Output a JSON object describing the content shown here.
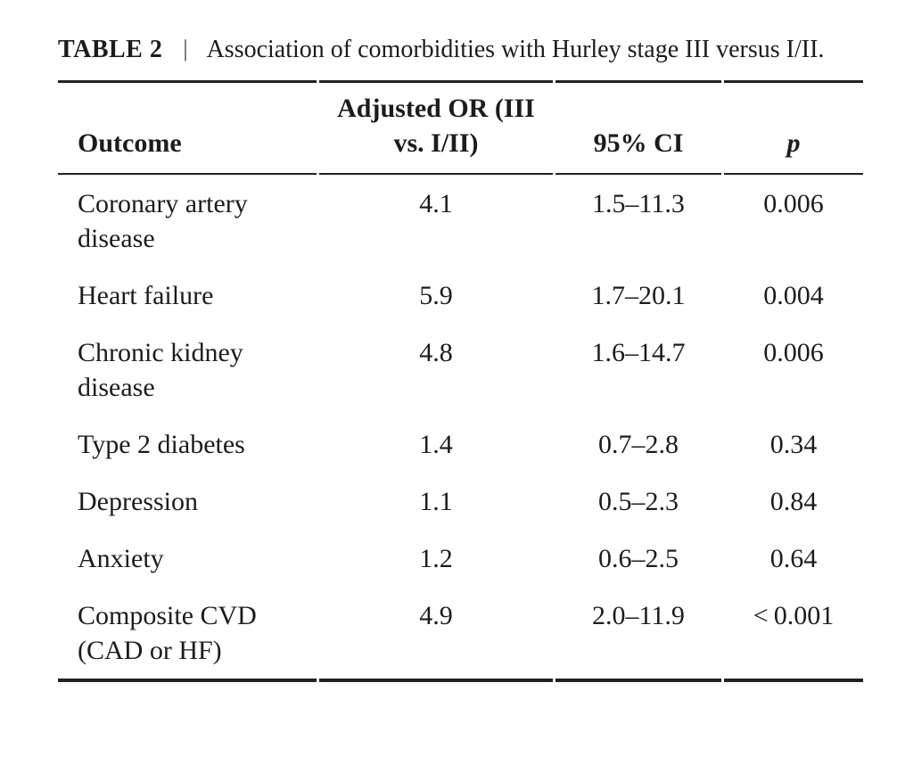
{
  "table": {
    "label": "TABLE 2",
    "separator": "|",
    "caption": "Association of comorbidities with Hurley stage III versus I/II.",
    "columns": [
      {
        "label": "Outcome"
      },
      {
        "label": "Adjusted OR (III vs. I/II)"
      },
      {
        "label": "95% CI"
      },
      {
        "label": "p"
      }
    ],
    "rows": [
      {
        "outcome": "Coronary artery disease",
        "adjusted_or": "4.1",
        "ci": "1.5–11.3",
        "p": "0.006"
      },
      {
        "outcome": "Heart failure",
        "adjusted_or": "5.9",
        "ci": "1.7–20.1",
        "p": "0.004"
      },
      {
        "outcome": "Chronic kidney disease",
        "adjusted_or": "4.8",
        "ci": "1.6–14.7",
        "p": "0.006"
      },
      {
        "outcome": "Type 2 diabetes",
        "adjusted_or": "1.4",
        "ci": "0.7–2.8",
        "p": "0.34"
      },
      {
        "outcome": "Depression",
        "adjusted_or": "1.1",
        "ci": "0.5–2.3",
        "p": "0.84"
      },
      {
        "outcome": "Anxiety",
        "adjusted_or": "1.2",
        "ci": "0.6–2.5",
        "p": "0.64"
      },
      {
        "outcome": "Composite CVD (CAD or HF)",
        "adjusted_or": "4.9",
        "ci": "2.0–11.9",
        "p": "< 0.001"
      }
    ]
  },
  "colors": {
    "text": "#1c1c1e",
    "rule": "#222222",
    "background": "#ffffff"
  }
}
